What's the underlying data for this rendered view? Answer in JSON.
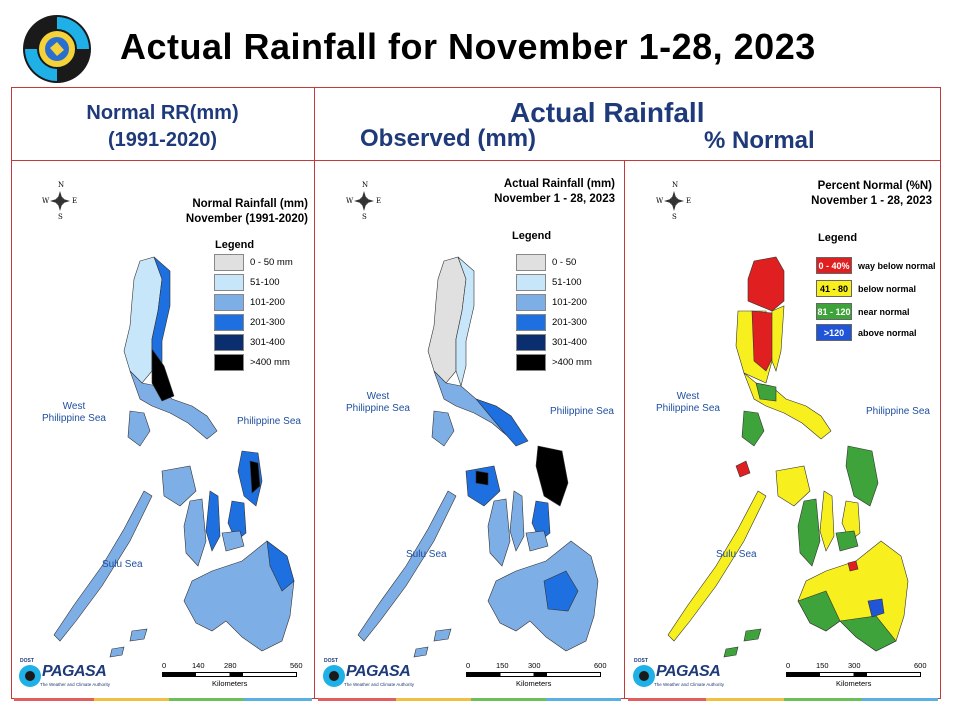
{
  "header": {
    "title": "Actual Rainfall for November 1-28, 2023"
  },
  "left_header": {
    "line1": "Normal RR(mm)",
    "line2": "(1991-2020)"
  },
  "right_header": {
    "main": "Actual Rainfall",
    "observed": "Observed (mm)",
    "percent": "% Normal"
  },
  "compass": {
    "n": "N",
    "s": "S",
    "e": "E",
    "w": "W"
  },
  "seas": {
    "west": "West Philippine Sea",
    "west_line1": "West",
    "west_line2": "Philippine Sea",
    "east": "Philippine Sea",
    "sulu": "Sulu Sea"
  },
  "panels": [
    {
      "id": "normal",
      "title_line1": "Normal Rainfall (mm)",
      "title_line2": "November (1991-2020)",
      "legend_title": "Legend",
      "legend": [
        {
          "label": "0 - 50 mm",
          "color": "#e0e0e0"
        },
        {
          "label": "51-100",
          "color": "#c8e6fa"
        },
        {
          "label": "101-200",
          "color": "#7eaee6"
        },
        {
          "label": "201-300",
          "color": "#1e6fe0"
        },
        {
          "label": "301-400",
          "color": "#0b2f6e"
        },
        {
          "label": ">400 mm",
          "color": "#000000"
        }
      ],
      "scale_ticks": [
        "0",
        "140",
        "280",
        "560"
      ],
      "scale_unit": "Kilometers"
    },
    {
      "id": "observed",
      "title_line1": "Actual Rainfall (mm)",
      "title_line2": "November 1 - 28, 2023",
      "legend_title": "Legend",
      "legend": [
        {
          "label": "0 - 50",
          "color": "#e0e0e0"
        },
        {
          "label": "51-100",
          "color": "#c8e6fa"
        },
        {
          "label": "101-200",
          "color": "#7eaee6"
        },
        {
          "label": "201-300",
          "color": "#1e6fe0"
        },
        {
          "label": "301-400",
          "color": "#0b2f6e"
        },
        {
          "label": ">400 mm",
          "color": "#000000"
        }
      ],
      "scale_ticks": [
        "0",
        "150",
        "300",
        "600"
      ],
      "scale_unit": "Kilometers"
    },
    {
      "id": "percent",
      "title_line1": "Percent Normal (%N)",
      "title_line2": "November 1 - 28, 2023",
      "legend_title": "Legend",
      "legend": [
        {
          "range": "0 - 40%",
          "label": "way below normal",
          "color": "#e02020",
          "text_color": "#ffffff"
        },
        {
          "range": "41 - 80",
          "label": "below normal",
          "color": "#f7f01e",
          "text_color": "#000000"
        },
        {
          "range": "81 - 120",
          "label": "near normal",
          "color": "#3ea33a",
          "text_color": "#ffffff"
        },
        {
          "range": ">120",
          "label": "above normal",
          "color": "#1f55d6",
          "text_color": "#ffffff"
        }
      ],
      "scale_ticks": [
        "0",
        "150",
        "300",
        "600"
      ],
      "scale_unit": "Kilometers"
    }
  ],
  "logo_footer": {
    "agency": "PAGASA",
    "dost": "DOST",
    "tagline": "The Weather and Climate Authority"
  },
  "colors": {
    "frame": "#c23b3b",
    "heading": "#1f3a7a",
    "stripe": [
      "#e06060",
      "#f0c040",
      "#6cbf5a",
      "#5ab0e0"
    ]
  }
}
